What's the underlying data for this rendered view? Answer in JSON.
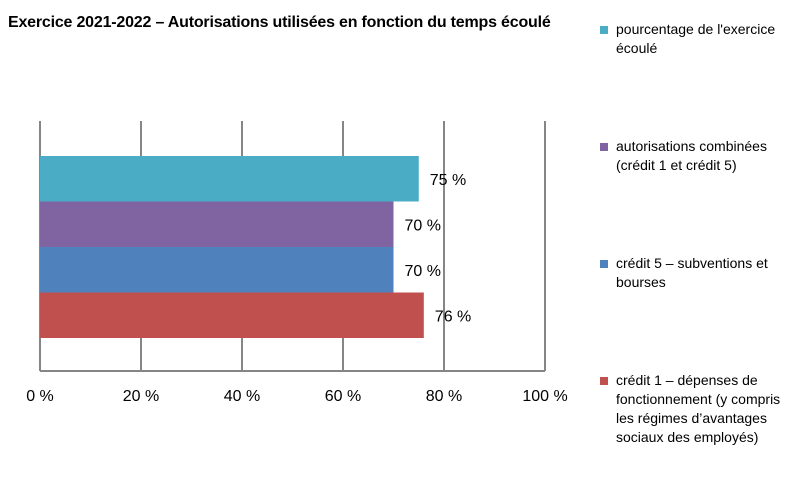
{
  "chart_data": {
    "type": "bar",
    "orientation": "horizontal",
    "title": "Exercice 2021-2022 – Autorisations utilisées en fonction du temps écoulé",
    "xlabel": "",
    "ylabel": "",
    "xlim": [
      0,
      100
    ],
    "x_ticks": [
      "0 %",
      "20 %",
      "40 %",
      "60 %",
      "80 %",
      "100 %"
    ],
    "grid": "vertical",
    "legend_position": "right",
    "series": [
      {
        "name": "pourcentage de l'exercice écoulé",
        "value": 75,
        "label": "75 %",
        "color": "#4BACC6"
      },
      {
        "name": "autorisations combinées (crédit 1 et crédit 5)",
        "value": 70,
        "label": "70 %",
        "color": "#8064A2"
      },
      {
        "name": "crédit 5 – subventions et bourses",
        "value": 70,
        "label": "70 %",
        "color": "#4F81BD"
      },
      {
        "name": "crédit 1 – dépenses de fonctionnement (y compris les régimes d’avantages sociaux des employés)",
        "value": 76,
        "label": "76 %",
        "color": "#C0504D"
      }
    ]
  }
}
